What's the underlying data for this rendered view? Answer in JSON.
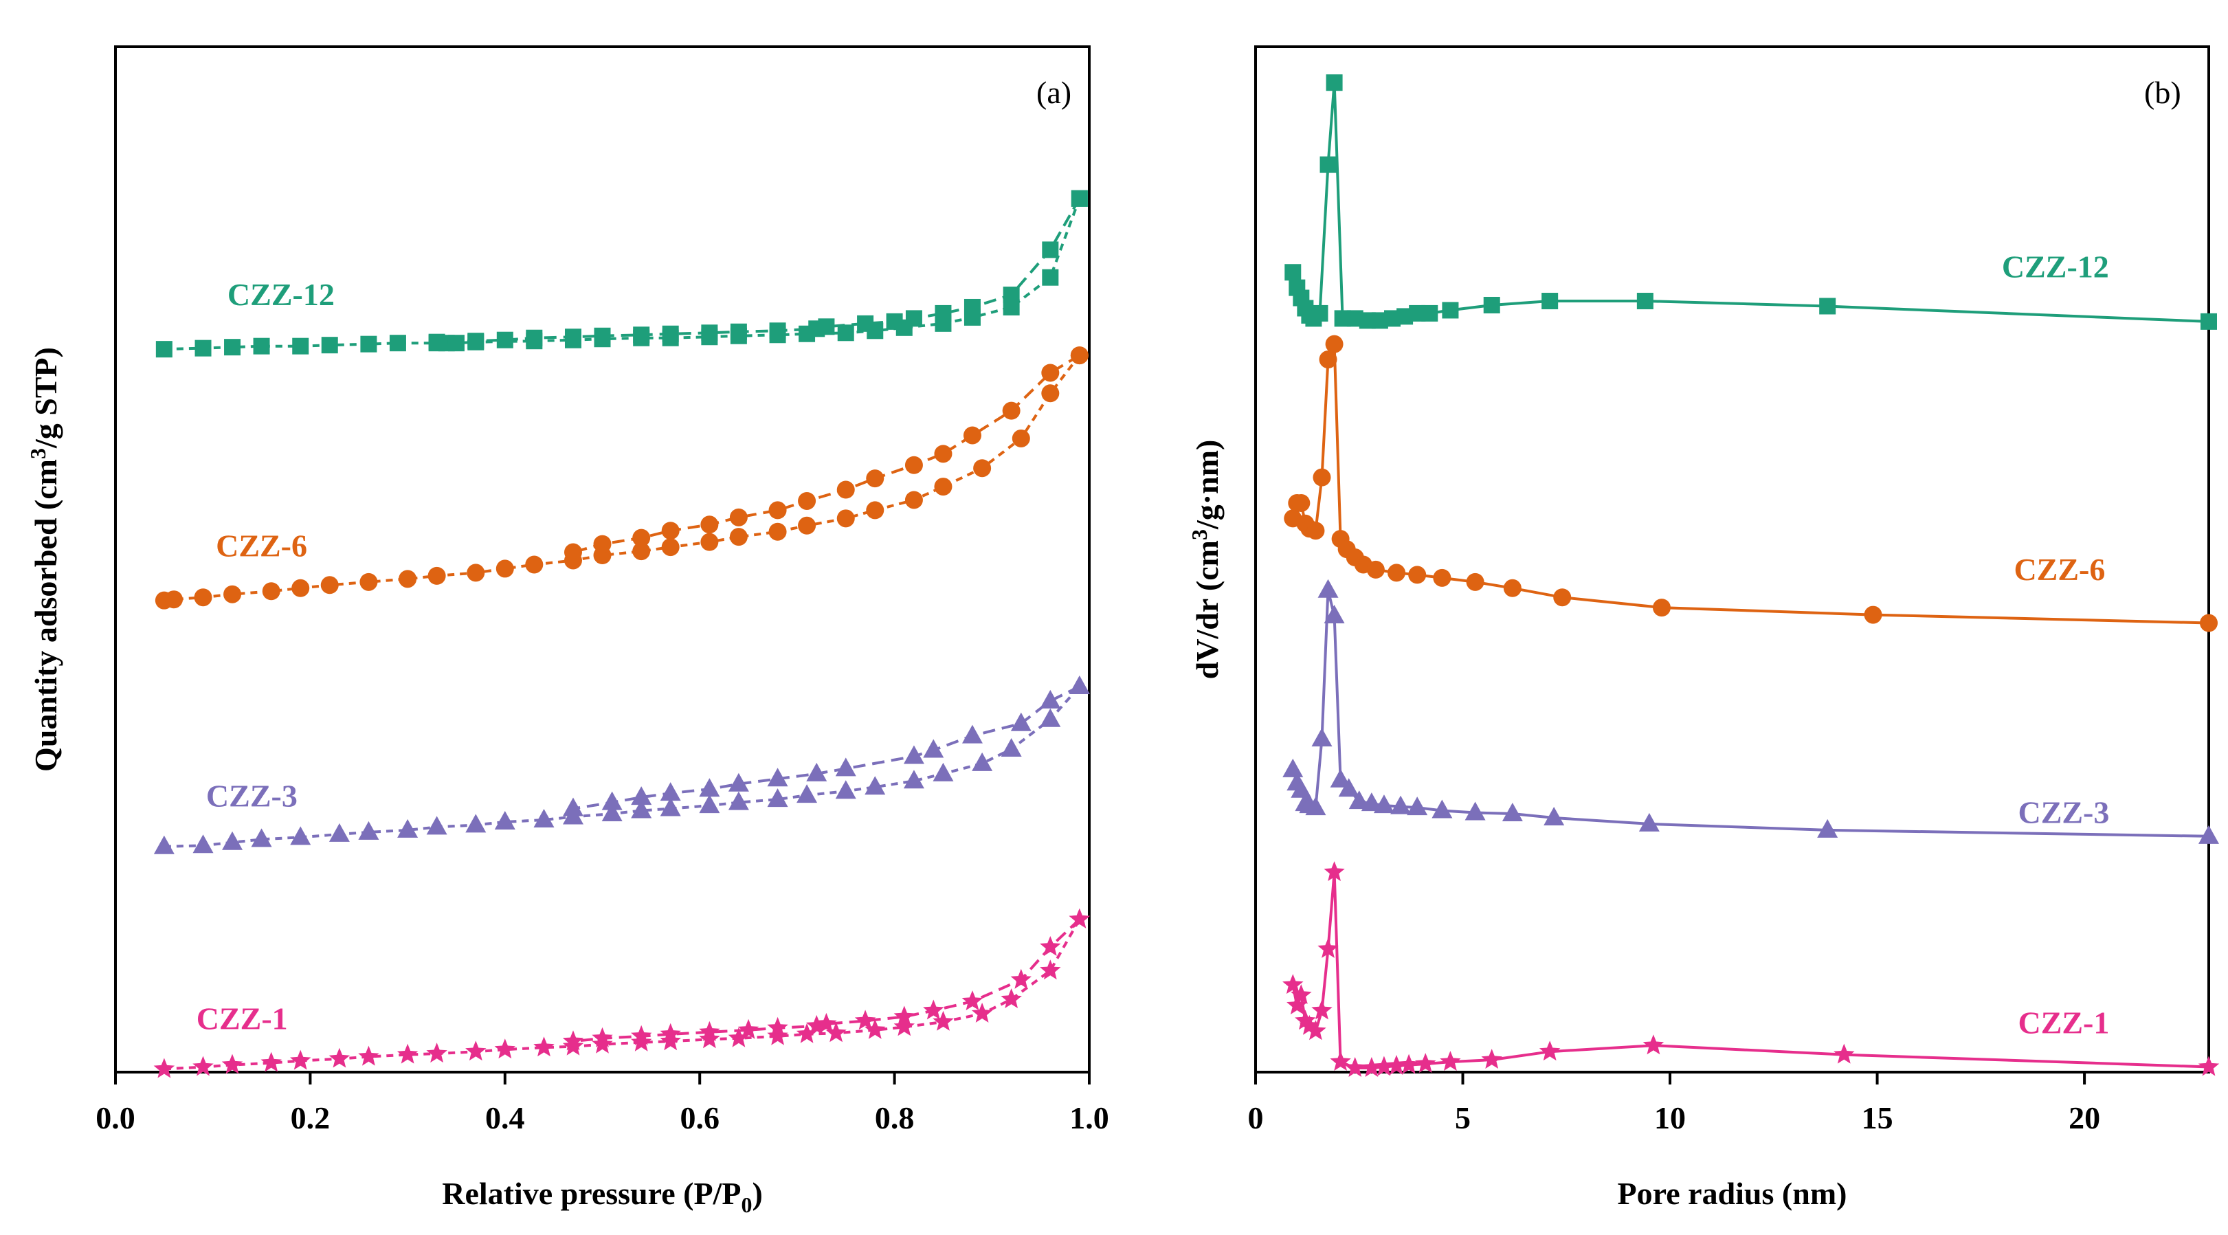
{
  "figure": {
    "panels": [
      "(a)",
      "(b)"
    ]
  },
  "chart_data": [
    {
      "type": "line",
      "subtype": "isotherm",
      "tag": "(a)",
      "title": "",
      "xlabel_text": "Relative pressure (P/P",
      "xlabel_sub": "0",
      "xlabel_tail": ")",
      "ylabel_text": "Quantity adsorbed (cm",
      "ylabel_sup": "3",
      "ylabel_tail": "/g STP)",
      "xlim": [
        0.0,
        1.0
      ],
      "ylim": [
        0,
        10
      ],
      "xticks": [
        "0.0",
        "0.2",
        "0.4",
        "0.6",
        "0.8",
        "1.0"
      ],
      "yticks": [],
      "grid": false,
      "series": [
        {
          "name": "CZZ-12",
          "color": "#1e9e7a",
          "marker": "square",
          "adsorption": {
            "x": [
              0.05,
              0.09,
              0.12,
              0.15,
              0.19,
              0.22,
              0.26,
              0.29,
              0.33,
              0.34,
              0.35,
              0.37,
              0.43,
              0.47,
              0.5,
              0.54,
              0.57,
              0.61,
              0.64,
              0.68,
              0.71,
              0.75,
              0.78,
              0.81,
              0.85,
              0.88,
              0.92,
              0.96,
              0.99
            ],
            "y": [
              7.05,
              7.06,
              7.07,
              7.08,
              7.08,
              7.09,
              7.1,
              7.11,
              7.11,
              7.11,
              7.11,
              7.12,
              7.13,
              7.14,
              7.15,
              7.16,
              7.16,
              7.17,
              7.18,
              7.19,
              7.2,
              7.21,
              7.23,
              7.26,
              7.3,
              7.36,
              7.46,
              7.75,
              8.52
            ]
          },
          "desorption": {
            "x": [
              0.99,
              0.96,
              0.92,
              0.88,
              0.85,
              0.82,
              0.8,
              0.77,
              0.73,
              0.72,
              0.68,
              0.64,
              0.61,
              0.57,
              0.54,
              0.5,
              0.47,
              0.43,
              0.4,
              0.37,
              0.33
            ],
            "y": [
              8.52,
              8.02,
              7.58,
              7.46,
              7.4,
              7.35,
              7.32,
              7.3,
              7.27,
              7.25,
              7.23,
              7.22,
              7.21,
              7.2,
              7.19,
              7.18,
              7.17,
              7.16,
              7.14,
              7.13,
              7.12
            ]
          }
        },
        {
          "name": "CZZ-6",
          "color": "#de6312",
          "marker": "circle",
          "adsorption": {
            "x": [
              0.05,
              0.06,
              0.09,
              0.12,
              0.16,
              0.19,
              0.22,
              0.26,
              0.3,
              0.33,
              0.37,
              0.4,
              0.43,
              0.47,
              0.5,
              0.54,
              0.57,
              0.61,
              0.64,
              0.68,
              0.71,
              0.75,
              0.78,
              0.82,
              0.85,
              0.89,
              0.93,
              0.96,
              0.99
            ],
            "y": [
              4.6,
              4.61,
              4.63,
              4.66,
              4.69,
              4.72,
              4.75,
              4.78,
              4.81,
              4.84,
              4.87,
              4.91,
              4.95,
              4.99,
              5.04,
              5.08,
              5.12,
              5.17,
              5.22,
              5.27,
              5.33,
              5.4,
              5.48,
              5.58,
              5.71,
              5.89,
              6.18,
              6.62,
              6.99
            ]
          },
          "desorption": {
            "x": [
              0.99,
              0.96,
              0.92,
              0.88,
              0.85,
              0.82,
              0.78,
              0.75,
              0.71,
              0.68,
              0.64,
              0.61,
              0.57,
              0.54,
              0.5,
              0.47
            ],
            "y": [
              6.99,
              6.82,
              6.45,
              6.21,
              6.03,
              5.92,
              5.79,
              5.68,
              5.57,
              5.48,
              5.41,
              5.34,
              5.28,
              5.21,
              5.15,
              5.07
            ]
          }
        },
        {
          "name": "CZZ-3",
          "color": "#7b6fba",
          "marker": "triangle",
          "adsorption": {
            "x": [
              0.05,
              0.09,
              0.12,
              0.15,
              0.19,
              0.23,
              0.26,
              0.3,
              0.33,
              0.37,
              0.4,
              0.44,
              0.47,
              0.51,
              0.54,
              0.57,
              0.61,
              0.64,
              0.68,
              0.71,
              0.75,
              0.78,
              0.82,
              0.85,
              0.89,
              0.92,
              0.96,
              0.99
            ],
            "y": [
              2.2,
              2.21,
              2.24,
              2.27,
              2.29,
              2.32,
              2.34,
              2.36,
              2.39,
              2.41,
              2.44,
              2.46,
              2.49,
              2.52,
              2.55,
              2.57,
              2.6,
              2.63,
              2.66,
              2.7,
              2.74,
              2.78,
              2.84,
              2.91,
              3.01,
              3.15,
              3.44,
              3.76
            ]
          },
          "desorption": {
            "x": [
              0.99,
              0.96,
              0.93,
              0.88,
              0.84,
              0.82,
              0.75,
              0.72,
              0.68,
              0.64,
              0.61,
              0.57,
              0.54,
              0.51,
              0.47
            ],
            "y": [
              3.76,
              3.62,
              3.4,
              3.28,
              3.14,
              3.08,
              2.96,
              2.91,
              2.86,
              2.81,
              2.76,
              2.72,
              2.68,
              2.63,
              2.57
            ]
          }
        },
        {
          "name": "CZZ-1",
          "color": "#e62e8c",
          "marker": "star",
          "adsorption": {
            "x": [
              0.05,
              0.09,
              0.12,
              0.16,
              0.19,
              0.23,
              0.26,
              0.3,
              0.33,
              0.37,
              0.4,
              0.44,
              0.47,
              0.5,
              0.54,
              0.57,
              0.61,
              0.64,
              0.68,
              0.71,
              0.74,
              0.78,
              0.81,
              0.85,
              0.89,
              0.92,
              0.96,
              0.99
            ],
            "y": [
              0.03,
              0.05,
              0.07,
              0.09,
              0.11,
              0.13,
              0.15,
              0.17,
              0.18,
              0.2,
              0.22,
              0.24,
              0.25,
              0.27,
              0.29,
              0.3,
              0.32,
              0.33,
              0.35,
              0.37,
              0.38,
              0.41,
              0.44,
              0.49,
              0.57,
              0.71,
              0.99,
              1.49
            ]
          },
          "desorption": {
            "x": [
              0.99,
              0.96,
              0.93,
              0.88,
              0.84,
              0.81,
              0.77,
              0.73,
              0.72,
              0.68,
              0.65,
              0.61,
              0.57,
              0.54,
              0.5,
              0.47
            ],
            "y": [
              1.49,
              1.22,
              0.9,
              0.69,
              0.6,
              0.54,
              0.5,
              0.47,
              0.45,
              0.43,
              0.41,
              0.39,
              0.37,
              0.35,
              0.33,
              0.3
            ]
          }
        }
      ],
      "labels": [
        {
          "text": "CZZ-12",
          "series": "CZZ-12",
          "x": 0.17,
          "y": 7.48
        },
        {
          "text": "CZZ-6",
          "series": "CZZ-6",
          "x": 0.15,
          "y": 5.03
        },
        {
          "text": "CZZ-3",
          "series": "CZZ-3",
          "x": 0.14,
          "y": 2.59
        },
        {
          "text": "CZZ-1",
          "series": "CZZ-1",
          "x": 0.13,
          "y": 0.42
        }
      ]
    },
    {
      "type": "line",
      "subtype": "pore-size-distribution",
      "tag": "(b)",
      "title": "",
      "xlabel": "Pore radius (nm)",
      "ylabel_text": "dV/dr (cm",
      "ylabel_sup": "3",
      "ylabel_tail": "/g·nm)",
      "xlim": [
        0,
        23
      ],
      "ylim": [
        0,
        10
      ],
      "xticks": [
        "0",
        "5",
        "10",
        "15",
        "20"
      ],
      "xtick_values": [
        0,
        5,
        10,
        15,
        20
      ],
      "yticks": [],
      "grid": false,
      "series": [
        {
          "name": "CZZ-12",
          "color": "#1e9e7a",
          "marker": "square",
          "x": [
            0.9,
            1.0,
            1.1,
            1.2,
            1.3,
            1.4,
            1.55,
            1.75,
            1.9,
            2.1,
            2.4,
            2.7,
            3.0,
            3.3,
            3.6,
            3.9,
            4.2,
            4.7,
            5.7,
            7.1,
            9.4,
            13.8,
            23.0
          ],
          "y": [
            7.8,
            7.65,
            7.55,
            7.45,
            7.38,
            7.35,
            7.4,
            8.85,
            9.65,
            7.35,
            7.35,
            7.33,
            7.33,
            7.35,
            7.37,
            7.4,
            7.4,
            7.43,
            7.48,
            7.52,
            7.52,
            7.47,
            7.32
          ]
        },
        {
          "name": "CZZ-6",
          "color": "#de6312",
          "marker": "circle",
          "x": [
            0.9,
            1.0,
            1.1,
            1.2,
            1.3,
            1.45,
            1.6,
            1.75,
            1.9,
            2.05,
            2.2,
            2.4,
            2.6,
            2.9,
            3.4,
            3.9,
            4.5,
            5.3,
            6.2,
            7.4,
            9.8,
            14.9,
            23.0
          ],
          "y": [
            5.4,
            5.55,
            5.55,
            5.35,
            5.3,
            5.28,
            5.8,
            6.95,
            7.1,
            5.2,
            5.1,
            5.02,
            4.95,
            4.9,
            4.87,
            4.85,
            4.82,
            4.78,
            4.72,
            4.63,
            4.53,
            4.46,
            4.38
          ]
        },
        {
          "name": "CZZ-3",
          "color": "#7b6fba",
          "marker": "triangle",
          "x": [
            0.9,
            1.0,
            1.1,
            1.2,
            1.3,
            1.45,
            1.6,
            1.75,
            1.9,
            2.05,
            2.25,
            2.5,
            2.8,
            3.1,
            3.5,
            3.9,
            4.5,
            5.3,
            6.2,
            7.2,
            9.5,
            13.8,
            23.0
          ],
          "y": [
            2.95,
            2.82,
            2.75,
            2.62,
            2.6,
            2.58,
            3.25,
            4.7,
            4.45,
            2.85,
            2.76,
            2.64,
            2.62,
            2.6,
            2.59,
            2.58,
            2.55,
            2.53,
            2.52,
            2.48,
            2.42,
            2.36,
            2.3
          ]
        },
        {
          "name": "CZZ-1",
          "color": "#e62e8c",
          "marker": "star",
          "x": [
            0.9,
            1.0,
            1.1,
            1.2,
            1.3,
            1.45,
            1.6,
            1.75,
            1.9,
            2.05,
            2.4,
            2.8,
            3.1,
            3.4,
            3.7,
            4.1,
            4.7,
            5.7,
            7.1,
            9.6,
            14.2,
            23.0
          ],
          "y": [
            0.85,
            0.65,
            0.75,
            0.5,
            0.45,
            0.4,
            0.6,
            1.2,
            1.95,
            0.1,
            0.04,
            0.04,
            0.05,
            0.06,
            0.07,
            0.08,
            0.1,
            0.12,
            0.2,
            0.26,
            0.17,
            0.05
          ]
        }
      ],
      "labels": [
        {
          "text": "CZZ-12",
          "series": "CZZ-12",
          "x": 19.3,
          "y": 7.75
        },
        {
          "text": "CZZ-6",
          "series": "CZZ-6",
          "x": 19.4,
          "y": 4.8
        },
        {
          "text": "CZZ-3",
          "series": "CZZ-3",
          "x": 19.5,
          "y": 2.43
        },
        {
          "text": "CZZ-1",
          "series": "CZZ-1",
          "x": 19.5,
          "y": 0.38
        }
      ]
    }
  ]
}
